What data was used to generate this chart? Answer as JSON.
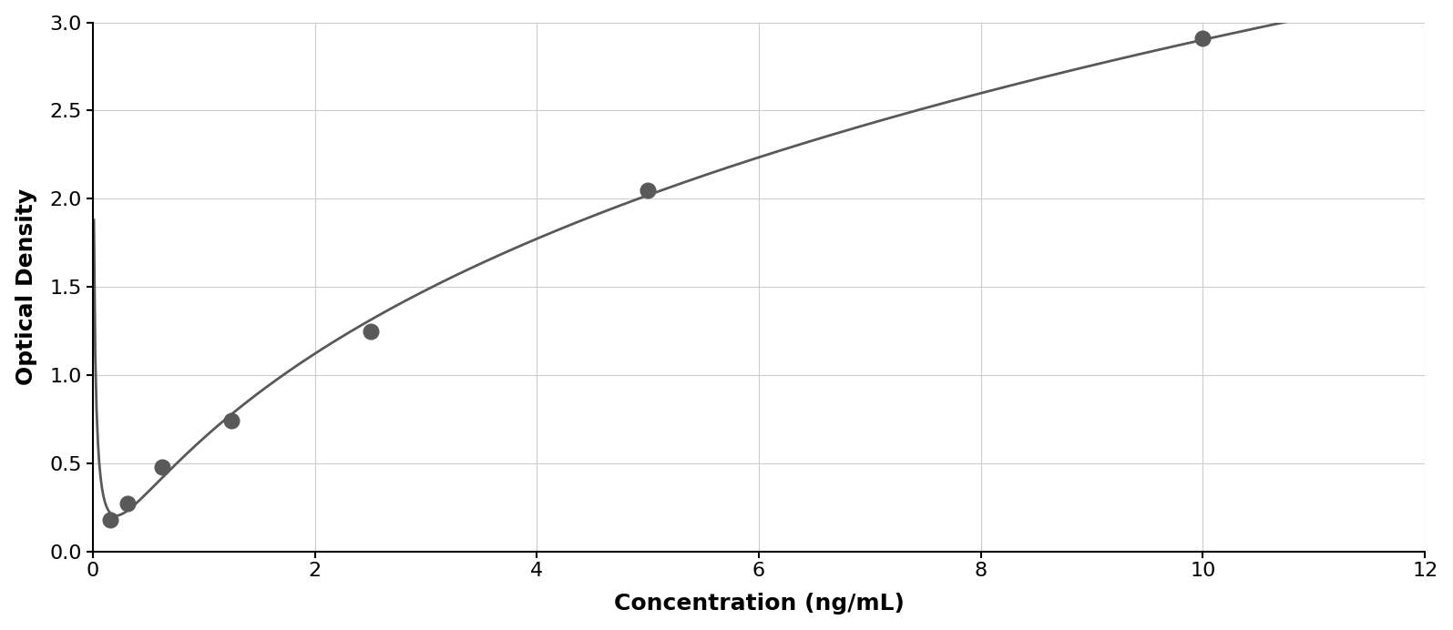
{
  "x_data": [
    0.156,
    0.313,
    0.625,
    1.25,
    2.5,
    5.0,
    10.0
  ],
  "y_data": [
    0.18,
    0.27,
    0.48,
    0.74,
    1.25,
    2.05,
    2.91
  ],
  "point_color": "#595959",
  "line_color": "#595959",
  "xlabel": "Concentration (ng/mL)",
  "ylabel": "Optical Density",
  "xlim": [
    0,
    12
  ],
  "ylim": [
    0,
    3.0
  ],
  "xticks": [
    0,
    2,
    4,
    6,
    8,
    10,
    12
  ],
  "yticks": [
    0,
    0.5,
    1.0,
    1.5,
    2.0,
    2.5,
    3.0
  ],
  "xlabel_fontsize": 18,
  "ylabel_fontsize": 18,
  "tick_fontsize": 16,
  "marker_size": 12,
  "line_width": 2.0,
  "background_color": "#ffffff",
  "grid_color": "#cccccc",
  "border_color": "#000000",
  "figure_background": "#ffffff"
}
